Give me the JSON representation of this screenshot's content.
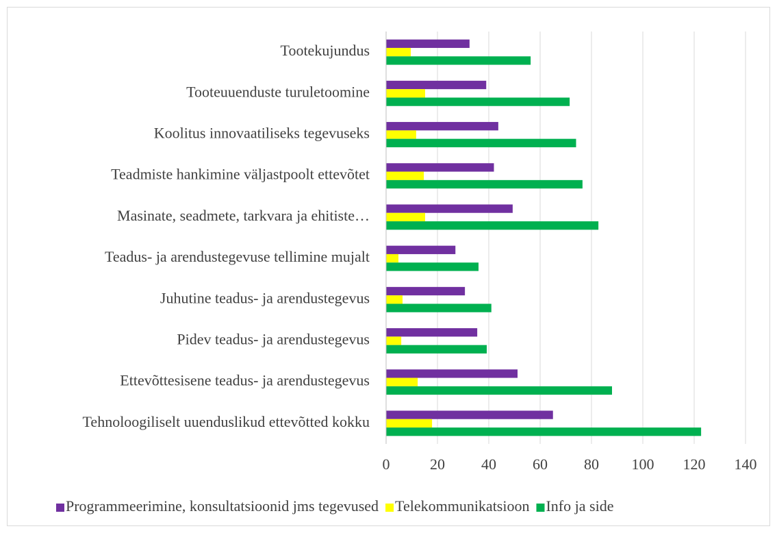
{
  "chart_data": {
    "type": "barh",
    "categories": [
      "Tootekujundus",
      "Tooteuuenduste turuletoomine",
      "Koolitus innovaatiliseks tegevuseks",
      "Teadmiste hankimine väljastpoolt ettevõtet",
      "Masinate, seadmete, tarkvara ja ehitiste…",
      "Teadus- ja arendustegevuse tellimine mujalt",
      "Juhutine teadus- ja arendustegevus",
      "Pidev teadus- ja arendustegevus",
      "Ettevõttesisene teadus- ja arendustegevus",
      "Tehnoloogiliselt uuenduslikud ettevõtted kokku"
    ],
    "series": [
      {
        "name": "Programmeerimine, konsultatsioonid jms tegevused",
        "color": "#7030a0",
        "values": [
          32.5,
          39,
          43.7,
          42,
          49.3,
          27,
          30.7,
          35.5,
          51.2,
          65
        ]
      },
      {
        "name": "Telekommunikatsioon",
        "color": "#ffff00",
        "values": [
          9.6,
          15.2,
          11.7,
          14.7,
          15.2,
          4.8,
          6.4,
          5.9,
          12.3,
          17.9
        ]
      },
      {
        "name": "Info ja side",
        "color": "#00b050",
        "values": [
          56.3,
          71.5,
          74,
          76.5,
          82.7,
          36,
          41,
          39.2,
          88,
          122.7
        ]
      }
    ],
    "xlim": [
      0,
      140
    ],
    "xticks": [
      0,
      20,
      40,
      60,
      80,
      100,
      120,
      140
    ],
    "grid": true,
    "legend": "bottom"
  }
}
